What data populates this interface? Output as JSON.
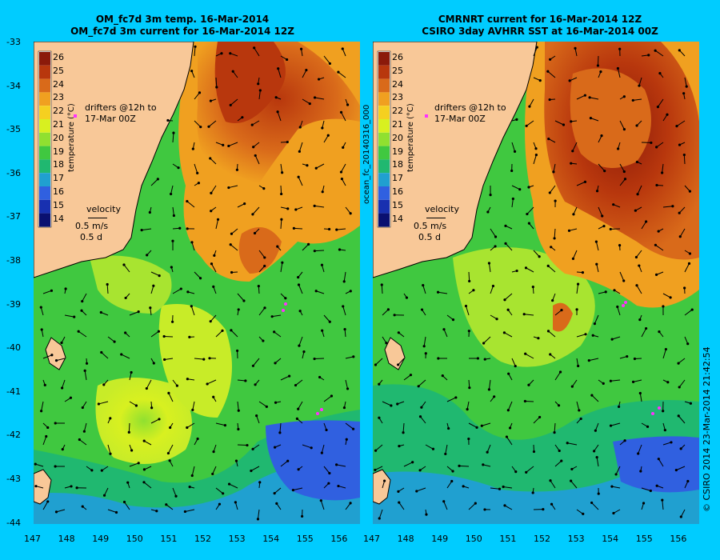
{
  "panels": [
    {
      "title_line1": "OM_fc7d 3m temp. 16-Mar-2014",
      "title_line2": "OM_fc7d 3m current for 16-Mar-2014 12Z"
    },
    {
      "title_line1": "CMRNRT current for 16-Mar-2014 12Z",
      "title_line2": "CSIRO 3day AVHRR SST at 16-Mar-2014 00Z"
    }
  ],
  "colorbar": {
    "label": "temperature (°C)",
    "ticks": [
      "26",
      "25",
      "24",
      "23",
      "22",
      "21",
      "20",
      "19",
      "18",
      "17",
      "16",
      "15",
      "14"
    ],
    "colors": [
      "#8b1a0a",
      "#b8370d",
      "#d96a1a",
      "#f0a020",
      "#f5d020",
      "#d8f020",
      "#90e030",
      "#40c840",
      "#20b870",
      "#20a0d0",
      "#3060e0",
      "#1830b0",
      "#0a1070"
    ]
  },
  "legend": {
    "drifters_line1": "drifters @12h to",
    "drifters_line2": "17-Mar 00Z",
    "velocity_label": "velocity",
    "velocity_scale": "0.5 m/s",
    "velocity_time": "0.5 d"
  },
  "y_ticks": [
    "-33",
    "-34",
    "-35",
    "-36",
    "-37",
    "-38",
    "-39",
    "-40",
    "-41",
    "-42",
    "-43",
    "-44"
  ],
  "x_ticks": [
    "147",
    "148",
    "149",
    "150",
    "151",
    "152",
    "153",
    "154",
    "155",
    "156"
  ],
  "middle_label": "ocean_fc_20140316_000",
  "credit": "© CSIRO 2014   23-Mar-2014 21:42:54"
}
